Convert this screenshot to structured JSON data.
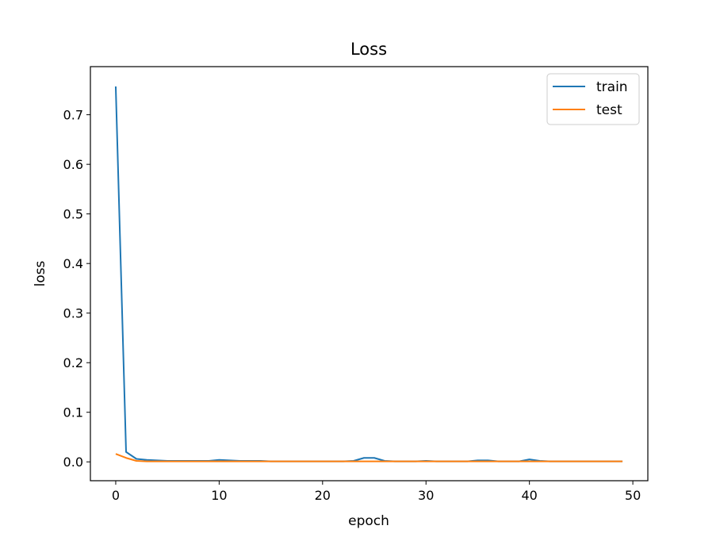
{
  "chart_data": {
    "type": "line",
    "title": "Loss",
    "xlabel": "epoch",
    "ylabel": "loss",
    "xlim": [
      -2.45,
      51.45
    ],
    "ylim": [
      -0.038,
      0.797
    ],
    "xticks": [
      0,
      10,
      20,
      30,
      40,
      50
    ],
    "yticks": [
      0.0,
      0.1,
      0.2,
      0.3,
      0.4,
      0.5,
      0.6,
      0.7
    ],
    "xtick_labels": [
      "0",
      "10",
      "20",
      "30",
      "40",
      "50"
    ],
    "ytick_labels": [
      "0.0",
      "0.1",
      "0.2",
      "0.3",
      "0.4",
      "0.5",
      "0.6",
      "0.7"
    ],
    "grid": false,
    "legend_position": "top-right",
    "x": [
      0,
      1,
      2,
      3,
      4,
      5,
      6,
      7,
      8,
      9,
      10,
      11,
      12,
      13,
      14,
      15,
      16,
      17,
      18,
      19,
      20,
      21,
      22,
      23,
      24,
      25,
      26,
      27,
      28,
      29,
      30,
      31,
      32,
      33,
      34,
      35,
      36,
      37,
      38,
      39,
      40,
      41,
      42,
      43,
      44,
      45,
      46,
      47,
      48,
      49
    ],
    "series": [
      {
        "name": "train",
        "color": "#1f77b4",
        "values": [
          0.757,
          0.02,
          0.006,
          0.004,
          0.003,
          0.002,
          0.002,
          0.002,
          0.002,
          0.002,
          0.004,
          0.003,
          0.002,
          0.002,
          0.002,
          0.001,
          0.001,
          0.001,
          0.001,
          0.001,
          0.001,
          0.001,
          0.001,
          0.002,
          0.008,
          0.008,
          0.002,
          0.001,
          0.001,
          0.001,
          0.002,
          0.001,
          0.001,
          0.001,
          0.001,
          0.003,
          0.003,
          0.001,
          0.001,
          0.001,
          0.005,
          0.002,
          0.001,
          0.001,
          0.001,
          0.001,
          0.001,
          0.001,
          0.001,
          0.001
        ]
      },
      {
        "name": "test",
        "color": "#ff7f0e",
        "values": [
          0.016,
          0.008,
          0.002,
          0.001,
          0.001,
          0.001,
          0.001,
          0.001,
          0.001,
          0.001,
          0.001,
          0.001,
          0.001,
          0.001,
          0.001,
          0.001,
          0.001,
          0.001,
          0.001,
          0.001,
          0.001,
          0.001,
          0.001,
          0.001,
          0.001,
          0.001,
          0.001,
          0.001,
          0.001,
          0.001,
          0.001,
          0.001,
          0.001,
          0.001,
          0.001,
          0.001,
          0.001,
          0.001,
          0.001,
          0.001,
          0.001,
          0.001,
          0.001,
          0.001,
          0.001,
          0.001,
          0.001,
          0.001,
          0.001,
          0.001
        ]
      }
    ]
  }
}
